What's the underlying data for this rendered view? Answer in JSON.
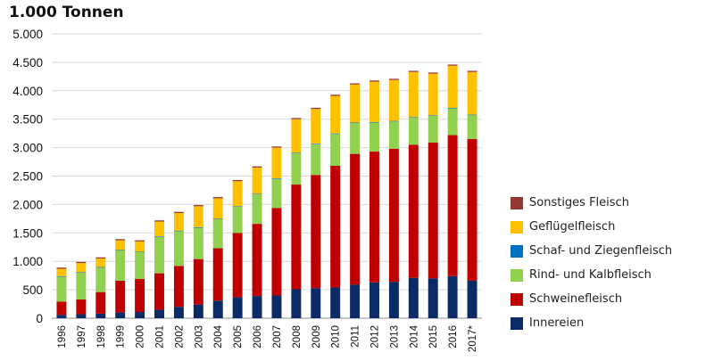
{
  "chart_data": {
    "type": "bar",
    "stacked": true,
    "title": "1.000 Tonnen",
    "xlabel": "",
    "ylabel": "",
    "ylim": [
      0,
      5000
    ],
    "yticks": [
      0,
      500,
      1000,
      1500,
      2000,
      2500,
      3000,
      3500,
      4000,
      4500,
      5000
    ],
    "ytick_labels": [
      "0",
      "500",
      "1.000",
      "1.500",
      "2.000",
      "2.500",
      "3.000",
      "3.500",
      "4.000",
      "4.500",
      "5.000"
    ],
    "grid": true,
    "legend_position": "right",
    "categories": [
      "1996",
      "1997",
      "1998",
      "1999",
      "2000",
      "2001",
      "2002",
      "2003",
      "2004",
      "2005",
      "2006",
      "2007",
      "2008",
      "2009",
      "2010",
      "2011",
      "2012",
      "2013",
      "2014",
      "2015",
      "2016",
      "2017*"
    ],
    "series": [
      {
        "name": "Innereien",
        "color": "#0b2a66",
        "values": [
          60,
          70,
          80,
          100,
          110,
          150,
          200,
          240,
          310,
          370,
          390,
          400,
          510,
          530,
          540,
          590,
          630,
          640,
          710,
          700,
          740,
          660
        ]
      },
      {
        "name": "Schweinefleisch",
        "color": "#c00000",
        "values": [
          230,
          260,
          380,
          560,
          580,
          640,
          720,
          800,
          920,
          1130,
          1270,
          1540,
          1840,
          1990,
          2140,
          2300,
          2300,
          2340,
          2340,
          2390,
          2480,
          2490
        ]
      },
      {
        "name": "Rind- und Kalbfleisch",
        "color": "#92d050",
        "values": [
          440,
          470,
          430,
          530,
          470,
          640,
          610,
          550,
          510,
          460,
          520,
          510,
          550,
          540,
          560,
          540,
          510,
          480,
          480,
          470,
          470,
          420
        ]
      },
      {
        "name": "Schaf- und Ziegenfleisch",
        "color": "#0070c0",
        "values": [
          10,
          10,
          10,
          10,
          10,
          10,
          10,
          10,
          10,
          10,
          10,
          10,
          10,
          10,
          10,
          10,
          10,
          10,
          10,
          10,
          10,
          10
        ]
      },
      {
        "name": "Geflügelfleisch",
        "color": "#ffc000",
        "values": [
          130,
          160,
          150,
          170,
          180,
          260,
          310,
          370,
          360,
          440,
          460,
          540,
          590,
          610,
          660,
          670,
          710,
          720,
          790,
          730,
          740,
          750
        ]
      },
      {
        "name": "Sonstiges Fleisch",
        "color": "#953735",
        "values": [
          20,
          20,
          20,
          20,
          20,
          20,
          20,
          20,
          20,
          20,
          20,
          20,
          20,
          20,
          20,
          20,
          20,
          20,
          20,
          20,
          20,
          20
        ]
      }
    ],
    "legend_order": [
      "Sonstiges Fleisch",
      "Geflügelfleisch",
      "Schaf- und Ziegenfleisch",
      "Rind- und Kalbfleisch",
      "Schweinefleisch",
      "Innereien"
    ]
  }
}
